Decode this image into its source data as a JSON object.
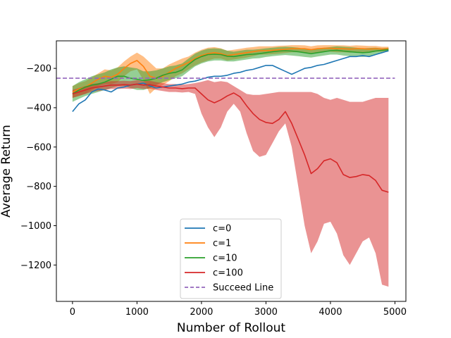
{
  "chart_data": {
    "type": "line",
    "title": "",
    "xlabel": "Number of Rollout",
    "ylabel": "Average Return",
    "xlim": [
      -250,
      5170
    ],
    "ylim": [
      -1385,
      -60
    ],
    "xticks": [
      0,
      1000,
      2000,
      3000,
      4000,
      5000
    ],
    "xtick_labels": [
      "0",
      "1000",
      "2000",
      "3000",
      "4000",
      "5000"
    ],
    "yticks": [
      -1200,
      -1000,
      -800,
      -600,
      -400,
      -200
    ],
    "ytick_labels": [
      "−1200",
      "−1000",
      "−800",
      "−600",
      "−400",
      "−200"
    ],
    "grid": false,
    "legend_position": "lower-center",
    "series": [
      {
        "name": "c=0",
        "color": "#1f77b4",
        "style": "solid",
        "x": [
          0,
          100,
          200,
          300,
          400,
          500,
          600,
          700,
          800,
          900,
          1000,
          1100,
          1200,
          1300,
          1400,
          1500,
          1600,
          1700,
          1800,
          1900,
          2000,
          2100,
          2200,
          2300,
          2400,
          2500,
          2600,
          2700,
          2800,
          2900,
          3000,
          3100,
          3200,
          3300,
          3400,
          3500,
          3600,
          3700,
          3800,
          3900,
          4000,
          4100,
          4200,
          4300,
          4400,
          4500,
          4600,
          4700,
          4800,
          4900
        ],
        "y": [
          -420,
          -380,
          -360,
          -320,
          -305,
          -310,
          -320,
          -300,
          -295,
          -285,
          -280,
          -275,
          -290,
          -300,
          -295,
          -290,
          -285,
          -280,
          -270,
          -265,
          -255,
          -245,
          -240,
          -240,
          -235,
          -225,
          -220,
          -210,
          -205,
          -195,
          -185,
          -185,
          -200,
          -215,
          -230,
          -215,
          -200,
          -195,
          -185,
          -180,
          -170,
          -160,
          -150,
          -140,
          -140,
          -135,
          -140,
          -130,
          -120,
          -110
        ],
        "band_lower": [],
        "band_upper": []
      },
      {
        "name": "c=1",
        "color": "#ff7f0e",
        "style": "solid",
        "x": [
          0,
          100,
          200,
          300,
          400,
          500,
          600,
          700,
          800,
          900,
          1000,
          1100,
          1200,
          1300,
          1400,
          1500,
          1600,
          1700,
          1800,
          1900,
          2000,
          2100,
          2200,
          2300,
          2400,
          2500,
          2600,
          2700,
          2800,
          2900,
          3000,
          3100,
          3200,
          3300,
          3400,
          3500,
          3600,
          3700,
          3800,
          3900,
          4000,
          4100,
          4200,
          4300,
          4400,
          4500,
          4600,
          4700,
          4800,
          4900
        ],
        "y": [
          -320,
          -305,
          -295,
          -275,
          -255,
          -240,
          -245,
          -230,
          -200,
          -175,
          -160,
          -190,
          -240,
          -250,
          -240,
          -220,
          -200,
          -185,
          -170,
          -150,
          -135,
          -125,
          -120,
          -125,
          -135,
          -130,
          -125,
          -120,
          -115,
          -110,
          -110,
          -108,
          -105,
          -103,
          -100,
          -100,
          -100,
          -105,
          -100,
          -98,
          -98,
          -100,
          -100,
          -102,
          -100,
          -100,
          -102,
          -100,
          -102,
          -100
        ],
        "band_lower": [
          -350,
          -340,
          -330,
          -310,
          -290,
          -280,
          -280,
          -270,
          -240,
          -215,
          -205,
          -260,
          -330,
          -300,
          -285,
          -265,
          -240,
          -225,
          -205,
          -185,
          -170,
          -160,
          -150,
          -150,
          -160,
          -155,
          -150,
          -145,
          -138,
          -130,
          -130,
          -128,
          -125,
          -122,
          -118,
          -118,
          -118,
          -122,
          -118,
          -115,
          -115,
          -118,
          -118,
          -120,
          -118,
          -118,
          -118,
          -115,
          -114,
          -112
        ],
        "band_upper": [
          -290,
          -275,
          -265,
          -245,
          -225,
          -205,
          -210,
          -195,
          -165,
          -140,
          -120,
          -140,
          -170,
          -200,
          -200,
          -180,
          -165,
          -150,
          -140,
          -120,
          -105,
          -95,
          -92,
          -98,
          -110,
          -105,
          -100,
          -95,
          -92,
          -88,
          -88,
          -88,
          -85,
          -84,
          -82,
          -82,
          -83,
          -88,
          -83,
          -82,
          -82,
          -83,
          -83,
          -85,
          -83,
          -84,
          -86,
          -86,
          -90,
          -90
        ]
      },
      {
        "name": "c=10",
        "color": "#2ca02c",
        "style": "solid",
        "x": [
          0,
          100,
          200,
          300,
          400,
          500,
          600,
          700,
          800,
          900,
          1000,
          1100,
          1200,
          1300,
          1400,
          1500,
          1600,
          1700,
          1800,
          1900,
          2000,
          2100,
          2200,
          2300,
          2400,
          2500,
          2600,
          2700,
          2800,
          2900,
          3000,
          3100,
          3200,
          3300,
          3400,
          3500,
          3600,
          3700,
          3800,
          3900,
          4000,
          4100,
          4200,
          4300,
          4400,
          4500,
          4600,
          4700,
          4800,
          4900
        ],
        "y": [
          -330,
          -310,
          -295,
          -285,
          -280,
          -270,
          -255,
          -240,
          -240,
          -250,
          -255,
          -262,
          -258,
          -250,
          -235,
          -225,
          -220,
          -208,
          -180,
          -155,
          -140,
          -130,
          -128,
          -130,
          -138,
          -140,
          -135,
          -130,
          -128,
          -125,
          -120,
          -115,
          -112,
          -110,
          -112,
          -115,
          -120,
          -125,
          -120,
          -115,
          -110,
          -108,
          -112,
          -115,
          -118,
          -120,
          -118,
          -112,
          -108,
          -105
        ],
        "band_lower": [
          -370,
          -355,
          -340,
          -330,
          -320,
          -310,
          -300,
          -290,
          -290,
          -300,
          -310,
          -310,
          -300,
          -285,
          -270,
          -260,
          -250,
          -240,
          -215,
          -190,
          -175,
          -165,
          -160,
          -160,
          -165,
          -165,
          -160,
          -155,
          -150,
          -148,
          -142,
          -138,
          -135,
          -132,
          -135,
          -138,
          -142,
          -145,
          -140,
          -135,
          -130,
          -130,
          -135,
          -138,
          -140,
          -142,
          -140,
          -130,
          -120,
          -115
        ],
        "band_upper": [
          -290,
          -270,
          -255,
          -240,
          -230,
          -220,
          -205,
          -195,
          -190,
          -195,
          -200,
          -215,
          -215,
          -210,
          -200,
          -190,
          -185,
          -175,
          -150,
          -125,
          -110,
          -100,
          -98,
          -100,
          -110,
          -115,
          -110,
          -105,
          -105,
          -102,
          -98,
          -95,
          -92,
          -90,
          -92,
          -95,
          -100,
          -105,
          -100,
          -95,
          -92,
          -88,
          -90,
          -92,
          -95,
          -98,
          -96,
          -95,
          -98,
          -95
        ]
      },
      {
        "name": "c=100",
        "color": "#d62728",
        "style": "solid",
        "x": [
          0,
          100,
          200,
          300,
          400,
          500,
          600,
          700,
          800,
          900,
          1000,
          1100,
          1200,
          1300,
          1400,
          1500,
          1600,
          1700,
          1800,
          1900,
          2000,
          2100,
          2200,
          2300,
          2400,
          2500,
          2600,
          2700,
          2800,
          2900,
          3000,
          3100,
          3200,
          3300,
          3400,
          3500,
          3600,
          3700,
          3800,
          3900,
          4000,
          4100,
          4200,
          4300,
          4400,
          4500,
          4600,
          4700,
          4800,
          4900
        ],
        "y": [
          -330,
          -320,
          -310,
          -300,
          -295,
          -290,
          -285,
          -285,
          -283,
          -285,
          -280,
          -285,
          -283,
          -290,
          -295,
          -300,
          -300,
          -303,
          -300,
          -300,
          -330,
          -360,
          -375,
          -360,
          -340,
          -325,
          -345,
          -390,
          -430,
          -460,
          -475,
          -480,
          -460,
          -420,
          -480,
          -560,
          -640,
          -735,
          -710,
          -670,
          -660,
          -680,
          -740,
          -755,
          -750,
          -740,
          -745,
          -770,
          -820,
          -830
        ],
        "band_lower": [
          -350,
          -340,
          -330,
          -320,
          -315,
          -310,
          -305,
          -305,
          -303,
          -305,
          -300,
          -305,
          -303,
          -310,
          -315,
          -320,
          -320,
          -323,
          -320,
          -330,
          -430,
          -500,
          -550,
          -500,
          -420,
          -380,
          -420,
          -530,
          -620,
          -650,
          -640,
          -580,
          -520,
          -480,
          -600,
          -800,
          -1000,
          -1140,
          -1080,
          -990,
          -980,
          -1040,
          -1150,
          -1200,
          -1140,
          -1080,
          -1060,
          -1140,
          -1300,
          -1310
        ],
        "band_upper": [
          -310,
          -300,
          -290,
          -280,
          -275,
          -270,
          -265,
          -265,
          -263,
          -265,
          -260,
          -265,
          -263,
          -270,
          -275,
          -280,
          -280,
          -283,
          -280,
          -275,
          -268,
          -260,
          -270,
          -265,
          -270,
          -290,
          -310,
          -330,
          -335,
          -335,
          -330,
          -325,
          -320,
          -320,
          -320,
          -320,
          -320,
          -320,
          -330,
          -350,
          -360,
          -350,
          -360,
          -370,
          -370,
          -370,
          -360,
          -350,
          -350,
          -350
        ]
      },
      {
        "name": "Succeed Line",
        "color": "#9467bd",
        "style": "dashed",
        "x": [
          -250,
          5000
        ],
        "y": [
          -250,
          -250
        ],
        "band_lower": [],
        "band_upper": []
      }
    ]
  }
}
